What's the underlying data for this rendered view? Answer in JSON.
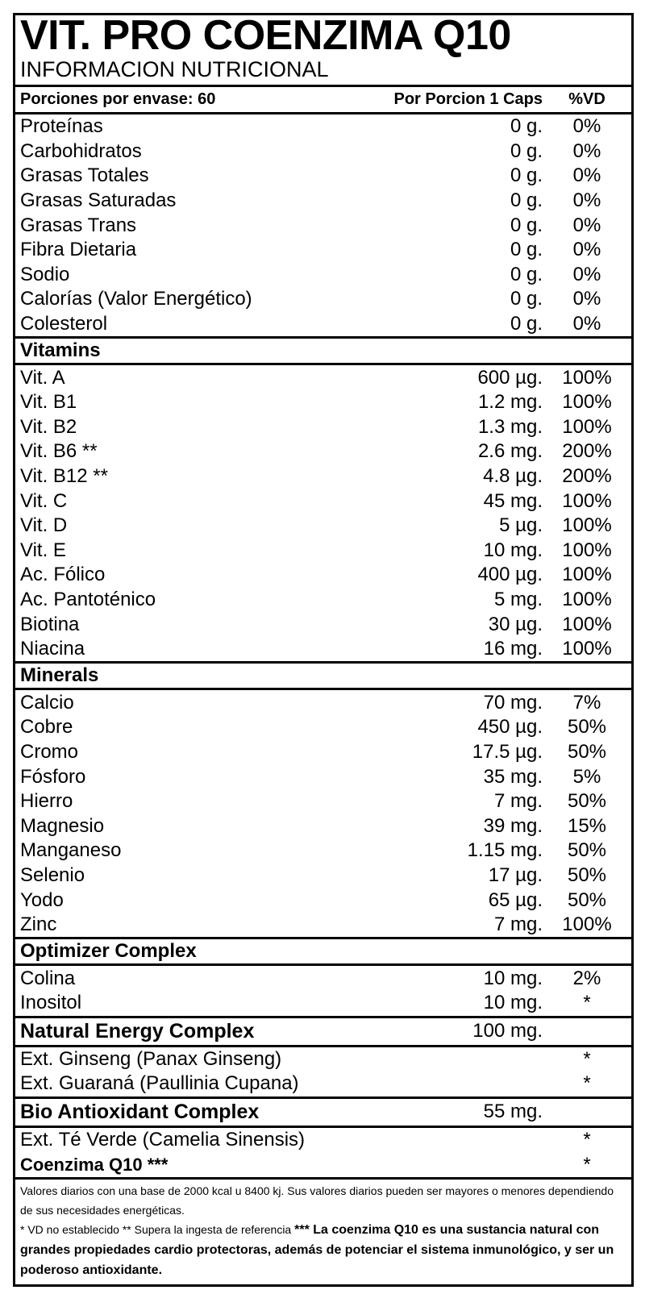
{
  "title": "VIT. PRO COENZIMA Q10",
  "subtitle": "INFORMACION NUTRICIONAL",
  "header": {
    "servings": "Porciones por envase: 60",
    "per_serving": "Por Porcion 1 Caps",
    "dv": "%VD"
  },
  "basic": [
    {
      "name": "Proteínas",
      "amount": "0 g.",
      "dv": "0%"
    },
    {
      "name": "Carbohidratos",
      "amount": "0 g.",
      "dv": "0%"
    },
    {
      "name": "Grasas Totales",
      "amount": "0 g.",
      "dv": "0%"
    },
    {
      "name": "Grasas Saturadas",
      "amount": "0 g.",
      "dv": "0%"
    },
    {
      "name": "Grasas Trans",
      "amount": "0 g.",
      "dv": "0%"
    },
    {
      "name": "Fibra Dietaria",
      "amount": "0 g.",
      "dv": "0%"
    },
    {
      "name": "Sodio",
      "amount": "0 g.",
      "dv": "0%"
    },
    {
      "name": "Calorías (Valor Energético)",
      "amount": "0 g.",
      "dv": "0%"
    },
    {
      "name": "Colesterol",
      "amount": "0 g.",
      "dv": "0%"
    }
  ],
  "vitamins": {
    "title": "Vitamins",
    "items": [
      {
        "name": "Vit. A",
        "amount": "600 µg.",
        "dv": "100%"
      },
      {
        "name": "Vit. B1",
        "amount": "1.2 mg.",
        "dv": "100%"
      },
      {
        "name": "Vit. B2",
        "amount": "1.3 mg.",
        "dv": "100%"
      },
      {
        "name": "Vit. B6 **",
        "amount": "2.6 mg.",
        "dv": "200%"
      },
      {
        "name": "Vit. B12 **",
        "amount": "4.8 µg.",
        "dv": "200%"
      },
      {
        "name": "Vit. C",
        "amount": "45 mg.",
        "dv": "100%"
      },
      {
        "name": "Vit. D",
        "amount": "5 µg.",
        "dv": "100%"
      },
      {
        "name": "Vit. E",
        "amount": "10 mg.",
        "dv": "100%"
      },
      {
        "name": "Ac. Fólico",
        "amount": "400 µg.",
        "dv": "100%"
      },
      {
        "name": "Ac. Pantoténico",
        "amount": "5 mg.",
        "dv": "100%"
      },
      {
        "name": "Biotina",
        "amount": "30 µg.",
        "dv": "100%"
      },
      {
        "name": "Niacina",
        "amount": "16 mg.",
        "dv": "100%"
      }
    ]
  },
  "minerals": {
    "title": "Minerals",
    "items": [
      {
        "name": "Calcio",
        "amount": "70 mg.",
        "dv": "7%"
      },
      {
        "name": "Cobre",
        "amount": "450 µg.",
        "dv": "50%"
      },
      {
        "name": "Cromo",
        "amount": "17.5 µg.",
        "dv": "50%"
      },
      {
        "name": "Fósforo",
        "amount": "35 mg.",
        "dv": "5%"
      },
      {
        "name": "Hierro",
        "amount": "7 mg.",
        "dv": "50%"
      },
      {
        "name": "Magnesio",
        "amount": "39 mg.",
        "dv": "15%"
      },
      {
        "name": "Manganeso",
        "amount": "1.15 mg.",
        "dv": "50%"
      },
      {
        "name": "Selenio",
        "amount": "17 µg.",
        "dv": "50%"
      },
      {
        "name": "Yodo",
        "amount": "65 µg.",
        "dv": "50%"
      },
      {
        "name": "Zinc",
        "amount": "7 mg.",
        "dv": "100%"
      }
    ]
  },
  "optimizer": {
    "title": "Optimizer Complex",
    "items": [
      {
        "name": "Colina",
        "amount": "10 mg.",
        "dv": "2%"
      },
      {
        "name": "Inositol",
        "amount": "10 mg.",
        "dv": "*"
      }
    ]
  },
  "energy": {
    "title": "Natural Energy Complex",
    "amount": "100 mg.",
    "items": [
      {
        "name": "Ext. Ginseng (Panax Ginseng)",
        "amount": "",
        "dv": "*"
      },
      {
        "name": "Ext. Guaraná (Paullinia Cupana)",
        "amount": "",
        "dv": "*"
      }
    ]
  },
  "antioxidant": {
    "title": "Bio Antioxidant Complex",
    "amount": "55 mg.",
    "items": [
      {
        "name": "Ext. Té Verde (Camelia Sinensis)",
        "amount": "",
        "dv": "*"
      }
    ],
    "q10_name": "Coenzima Q10 ***",
    "q10_dv": "*"
  },
  "footer": {
    "line1": "Valores diarios con una base de 2000 kcal u 8400 kj. Sus valores diarios pueden ser mayores o menores dependiendo de sus necesidades energéticas.",
    "line2_regular": "* VD no establecido ** Supera la ingesta de referencia ",
    "line2_bold": "*** La coenzima Q10 es una sustancia natural con grandes propiedades cardio protectoras, además de potenciar el sistema inmunológico, y ser un poderoso antioxidante."
  }
}
